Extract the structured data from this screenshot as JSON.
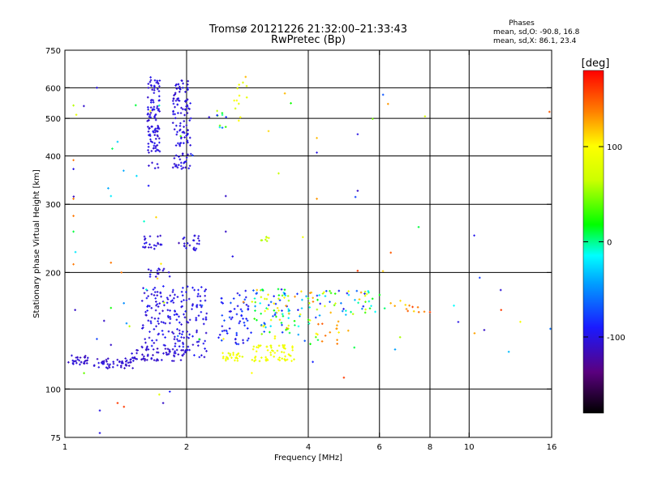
{
  "chart_data": {
    "type": "scatter",
    "title": "Tromsø 20121226 21:32:00–21:33:43",
    "subtitle": "RwPretec (Bp)",
    "legend_title": "Phases",
    "legend_lines": [
      "mean, sd,O:  -90.8, 16.8",
      "mean, sd,X:  86.1, 23.4"
    ],
    "xlabel": "Frequency [MHz]",
    "ylabel": "Stationary phase Virtual Height [km]",
    "xscale": "log",
    "yscale": "log",
    "xlim": [
      1,
      16
    ],
    "ylim": [
      75,
      750
    ],
    "xticks": [
      1,
      2,
      4,
      6,
      8,
      10,
      16
    ],
    "xtick_labels": [
      "1",
      "2",
      "4",
      "6",
      "8",
      "10",
      "16"
    ],
    "xgrid": [
      2,
      4,
      6,
      8,
      10
    ],
    "yticks": [
      75,
      100,
      200,
      300,
      400,
      500,
      600,
      750
    ],
    "ytick_labels": [
      "75",
      "100",
      "200",
      "300",
      "400",
      "500",
      "600",
      "750"
    ],
    "ygrid": [
      100,
      200,
      300,
      400,
      500,
      600
    ],
    "grid": true,
    "colorbar": {
      "label": "[deg]",
      "range": [
        -180,
        180
      ],
      "ticks": [
        100,
        0,
        -100
      ],
      "tick_labels": [
        "100",
        "0",
        "-100"
      ]
    },
    "clusters": [
      {
        "f": [
          1.02,
          1.14
        ],
        "h": [
          115,
          123
        ],
        "n": 28,
        "p": [
          -115,
          -100
        ]
      },
      {
        "f": [
          1.18,
          1.48
        ],
        "h": [
          113,
          120
        ],
        "n": 45,
        "p": [
          -115,
          -100
        ]
      },
      {
        "f": [
          1.45,
          2.0
        ],
        "h": [
          118,
          128
        ],
        "n": 70,
        "p": [
          -115,
          -100
        ]
      },
      {
        "f": [
          1.55,
          2.0
        ],
        "h": [
          128,
          185
        ],
        "n": 130,
        "p": [
          -110,
          -90
        ]
      },
      {
        "f": [
          1.6,
          1.72
        ],
        "h": [
          370,
          640
        ],
        "n": 110,
        "p": [
          -110,
          -95
        ]
      },
      {
        "f": [
          1.85,
          2.05
        ],
        "h": [
          370,
          630
        ],
        "n": 120,
        "p": [
          -110,
          -95
        ]
      },
      {
        "f": [
          1.55,
          1.75
        ],
        "h": [
          230,
          250
        ],
        "n": 22,
        "p": [
          -110,
          -95
        ]
      },
      {
        "f": [
          1.95,
          2.15
        ],
        "h": [
          228,
          250
        ],
        "n": 22,
        "p": [
          -110,
          -95
        ]
      },
      {
        "f": [
          1.6,
          1.85
        ],
        "h": [
          195,
          205
        ],
        "n": 14,
        "p": [
          -110,
          -95
        ]
      },
      {
        "f": [
          2.0,
          2.25
        ],
        "h": [
          120,
          185
        ],
        "n": 60,
        "p": [
          -110,
          -90
        ]
      },
      {
        "f": [
          2.4,
          2.9
        ],
        "h": [
          130,
          180
        ],
        "n": 60,
        "p": [
          -105,
          -70
        ]
      },
      {
        "f": [
          2.45,
          2.75
        ],
        "h": [
          118,
          124
        ],
        "n": 25,
        "p": [
          80,
          100
        ]
      },
      {
        "f": [
          2.9,
          3.7
        ],
        "h": [
          118,
          130
        ],
        "n": 60,
        "p": [
          80,
          100
        ]
      },
      {
        "f": [
          2.9,
          3.6
        ],
        "h": [
          135,
          182
        ],
        "n": 80,
        "p": [
          -100,
          120
        ]
      },
      {
        "f": [
          3.5,
          4.3
        ],
        "h": [
          130,
          180
        ],
        "n": 40,
        "p": [
          -100,
          140
        ]
      },
      {
        "f": [
          4.2,
          5.6
        ],
        "h": [
          155,
          180
        ],
        "n": 36,
        "p": [
          -100,
          140
        ]
      },
      {
        "f": [
          4.1,
          5.1
        ],
        "h": [
          130,
          150
        ],
        "n": 14,
        "p": [
          100,
          150
        ]
      },
      {
        "f": [
          5.3,
          6.2
        ],
        "h": [
          158,
          180
        ],
        "n": 10,
        "p": [
          -20,
          40
        ]
      },
      {
        "f": [
          6.3,
          8.0
        ],
        "h": [
          158,
          170
        ],
        "n": 12,
        "p": [
          110,
          160
        ]
      },
      {
        "f": [
          2.6,
          2.85
        ],
        "h": [
          480,
          620
        ],
        "n": 12,
        "p": [
          70,
          100
        ]
      },
      {
        "f": [
          2.35,
          2.55
        ],
        "h": [
          470,
          530
        ],
        "n": 10,
        "p": [
          -100,
          90
        ]
      },
      {
        "f": [
          3.0,
          3.2
        ],
        "h": [
          240,
          252
        ],
        "n": 8,
        "p": [
          50,
          80
        ]
      },
      {
        "f": [
          1.05,
          2.0
        ],
        "h": [
          90,
          600
        ],
        "n": 28,
        "p": [
          -120,
          120
        ]
      },
      {
        "f": [
          2.0,
          16.0
        ],
        "h": [
          100,
          600
        ],
        "n": 28,
        "p": [
          -120,
          140
        ]
      }
    ],
    "points": [
      {
        "f": 8.0,
        "h": 158,
        "p": 160
      },
      {
        "f": 9.4,
        "h": 149,
        "p": -100
      },
      {
        "f": 10.9,
        "h": 142,
        "p": -110
      },
      {
        "f": 12.0,
        "h": 160,
        "p": 160
      },
      {
        "f": 15.8,
        "h": 520,
        "p": 150
      },
      {
        "f": 6.3,
        "h": 545,
        "p": 130
      },
      {
        "f": 5.3,
        "h": 455,
        "p": -100
      },
      {
        "f": 5.3,
        "h": 325,
        "p": -110
      },
      {
        "f": 7.5,
        "h": 262,
        "p": 10
      },
      {
        "f": 6.4,
        "h": 225,
        "p": 150
      },
      {
        "f": 5.3,
        "h": 202,
        "p": 160
      },
      {
        "f": 5.2,
        "h": 128,
        "p": 10
      },
      {
        "f": 4.9,
        "h": 107,
        "p": 160
      },
      {
        "f": 4.2,
        "h": 445,
        "p": 120
      },
      {
        "f": 4.2,
        "h": 408,
        "p": -100
      },
      {
        "f": 4.2,
        "h": 310,
        "p": 130
      },
      {
        "f": 3.5,
        "h": 580,
        "p": 120
      },
      {
        "f": 2.8,
        "h": 640,
        "p": 120
      },
      {
        "f": 2.5,
        "h": 315,
        "p": -110
      },
      {
        "f": 2.6,
        "h": 220,
        "p": -100
      },
      {
        "f": 2.5,
        "h": 255,
        "p": -110
      },
      {
        "f": 2.9,
        "h": 110,
        "p": 100
      },
      {
        "f": 1.75,
        "h": 92,
        "p": -110
      },
      {
        "f": 1.35,
        "h": 92,
        "p": 160
      },
      {
        "f": 1.4,
        "h": 90,
        "p": 160
      },
      {
        "f": 1.22,
        "h": 88,
        "p": -100
      },
      {
        "f": 1.22,
        "h": 77,
        "p": -100
      },
      {
        "f": 1.05,
        "h": 540,
        "p": 60
      },
      {
        "f": 1.05,
        "h": 390,
        "p": 140
      },
      {
        "f": 1.05,
        "h": 370,
        "p": -100
      },
      {
        "f": 1.05,
        "h": 310,
        "p": 140
      },
      {
        "f": 1.05,
        "h": 255,
        "p": 10
      },
      {
        "f": 1.05,
        "h": 280,
        "p": 140
      },
      {
        "f": 1.05,
        "h": 210,
        "p": 140
      },
      {
        "f": 1.06,
        "h": 160,
        "p": -110
      },
      {
        "f": 1.28,
        "h": 330,
        "p": -40
      },
      {
        "f": 1.3,
        "h": 315,
        "p": -20
      },
      {
        "f": 1.35,
        "h": 435,
        "p": -30
      },
      {
        "f": 1.3,
        "h": 212,
        "p": 140
      },
      {
        "f": 1.38,
        "h": 200,
        "p": 140
      },
      {
        "f": 1.3,
        "h": 162,
        "p": 20
      },
      {
        "f": 1.25,
        "h": 150,
        "p": -110
      },
      {
        "f": 1.3,
        "h": 130,
        "p": -110
      },
      {
        "f": 1.2,
        "h": 600,
        "p": -100
      }
    ]
  }
}
